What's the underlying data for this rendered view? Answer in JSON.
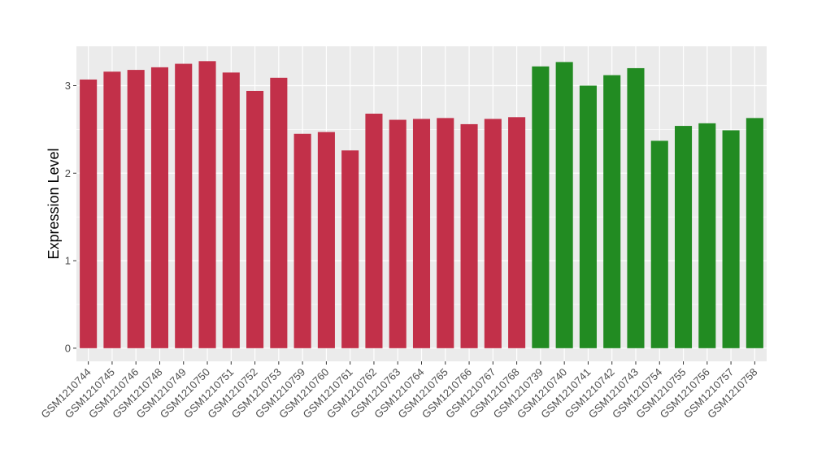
{
  "chart_data": {
    "type": "bar",
    "ylabel": "Expression Level",
    "xlabel": "",
    "ylim": [
      -0.15,
      3.45
    ],
    "y_ticks": [
      0,
      1,
      2,
      3
    ],
    "grid": true,
    "categories": [
      "GSM1210744",
      "GSM1210745",
      "GSM1210746",
      "GSM1210748",
      "GSM1210749",
      "GSM1210750",
      "GSM1210751",
      "GSM1210752",
      "GSM1210753",
      "GSM1210759",
      "GSM1210760",
      "GSM1210761",
      "GSM1210762",
      "GSM1210763",
      "GSM1210764",
      "GSM1210765",
      "GSM1210766",
      "GSM1210767",
      "GSM1210768",
      "GSM1210739",
      "GSM1210740",
      "GSM1210741",
      "GSM1210742",
      "GSM1210743",
      "GSM1210754",
      "GSM1210755",
      "GSM1210756",
      "GSM1210757",
      "GSM1210758"
    ],
    "values": [
      3.07,
      3.16,
      3.18,
      3.21,
      3.25,
      3.28,
      3.15,
      2.94,
      3.09,
      2.45,
      2.47,
      2.26,
      2.68,
      2.61,
      2.62,
      2.63,
      2.56,
      2.62,
      2.64,
      3.22,
      3.27,
      3.0,
      3.12,
      3.2,
      2.37,
      2.54,
      2.57,
      2.49,
      2.63
    ],
    "groups": [
      "red",
      "red",
      "red",
      "red",
      "red",
      "red",
      "red",
      "red",
      "red",
      "red",
      "red",
      "red",
      "red",
      "red",
      "red",
      "red",
      "red",
      "red",
      "red",
      "green",
      "green",
      "green",
      "green",
      "green",
      "green",
      "green",
      "green",
      "green",
      "green"
    ],
    "colors": {
      "red": "#c23049",
      "green": "#228b22",
      "panel": "#ebebeb",
      "grid": "#ffffff"
    }
  }
}
